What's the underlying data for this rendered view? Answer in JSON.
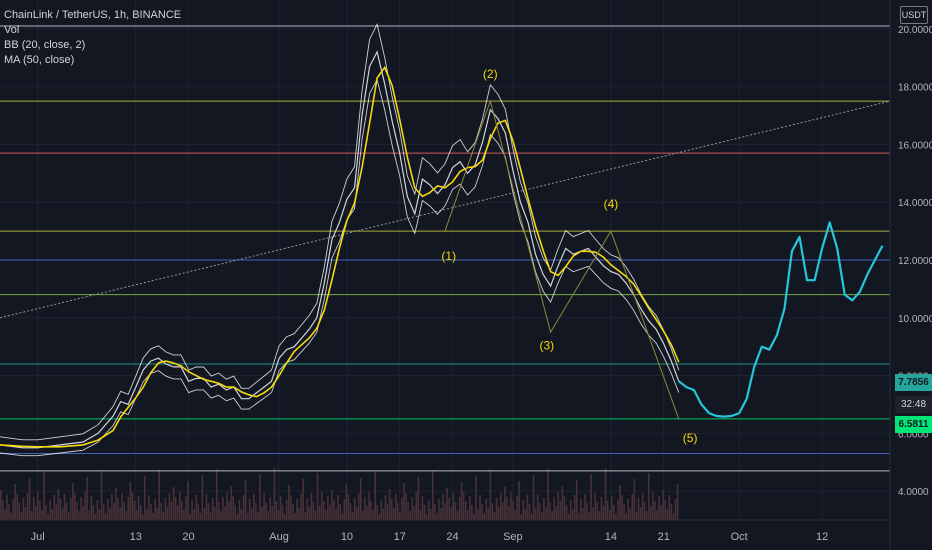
{
  "legend": {
    "symbol": "ChainLink / TetherUS, 1h, BINANCE",
    "vol": "Vol",
    "bb": "BB (20, close, 2)",
    "ma": "MA (50, close)"
  },
  "price_axis": {
    "currency": "USDT",
    "last_price": "7.7856",
    "countdown": "32:48",
    "line_price": "6.5811"
  },
  "colors": {
    "background": "#131722",
    "price_line": "#d1d4dc",
    "bollinger": "#ffffff",
    "moving_average": "#f5d90a",
    "projection": "#26c6da",
    "wave": "#f5d90a",
    "volume": "#5b3b3f"
  },
  "chart_data": {
    "type": "line",
    "title": "ChainLink / TetherUS, 1h, BINANCE",
    "ylim": [
      3,
      21
    ],
    "y_ticks": [
      4,
      6,
      8,
      10,
      12,
      14,
      16,
      18,
      20
    ],
    "y_tick_labels": [
      "4.0000",
      "6.0000",
      "8.0000",
      "10.0000",
      "12.0000",
      "14.0000",
      "16.0000",
      "18.0000",
      "20.0000"
    ],
    "x_tick_labels": [
      {
        "label": "Jul",
        "x": 0
      },
      {
        "label": "13",
        "x": 13
      },
      {
        "label": "20",
        "x": 20
      },
      {
        "label": "Aug",
        "x": 32
      },
      {
        "label": "10",
        "x": 41
      },
      {
        "label": "17",
        "x": 48
      },
      {
        "label": "24",
        "x": 55
      },
      {
        "label": "Sep",
        "x": 63
      },
      {
        "label": "14",
        "x": 76
      },
      {
        "label": "21",
        "x": 83
      },
      {
        "label": "Oct",
        "x": 93
      },
      {
        "label": "12",
        "x": 104
      }
    ],
    "xlim": [
      -5,
      113
    ],
    "price_series": {
      "name": "price",
      "x": [
        -5,
        -2,
        0,
        3,
        6,
        8,
        10,
        11,
        12,
        13,
        14,
        15,
        16,
        17,
        18,
        19,
        20,
        21,
        22,
        23,
        24,
        25,
        26,
        27,
        28,
        29,
        30,
        31,
        32,
        33,
        34,
        35,
        36,
        37,
        38,
        39,
        40,
        41,
        42,
        43,
        44,
        45,
        46,
        47,
        48,
        49,
        50,
        51,
        52,
        53,
        54,
        55,
        56,
        57,
        58,
        59,
        60,
        61,
        62,
        63,
        64,
        65,
        66,
        67,
        68,
        69,
        70,
        71,
        72,
        73,
        74,
        75,
        76,
        77,
        78,
        79,
        80,
        81,
        82,
        83,
        84,
        85
      ],
      "y": [
        5.6,
        5.5,
        5.5,
        5.6,
        5.7,
        6.0,
        6.6,
        7.1,
        7.0,
        7.6,
        8.2,
        8.5,
        8.6,
        8.4,
        8.3,
        8.3,
        7.8,
        7.9,
        7.9,
        7.6,
        7.7,
        7.5,
        7.6,
        7.2,
        7.2,
        7.4,
        7.6,
        7.8,
        8.6,
        8.9,
        9.0,
        9.3,
        9.6,
        10.0,
        11.2,
        12.7,
        13.3,
        14.1,
        14.5,
        17.0,
        18.7,
        19.2,
        18.1,
        16.8,
        15.7,
        14.2,
        13.6,
        14.8,
        14.6,
        14.3,
        14.6,
        15.2,
        15.4,
        15.0,
        15.3,
        16.1,
        17.2,
        16.9,
        16.4,
        15.1,
        14.0,
        13.3,
        12.2,
        11.5,
        11.1,
        11.8,
        12.4,
        12.2,
        12.3,
        12.4,
        12.1,
        11.8,
        11.6,
        11.5,
        11.2,
        10.8,
        10.3,
        9.9,
        9.6,
        9.1,
        8.5,
        7.8
      ]
    },
    "projection": {
      "name": "projection",
      "x": [
        85,
        86,
        87,
        88,
        89,
        90,
        91,
        92,
        93,
        94,
        95,
        96,
        97,
        98,
        99,
        100,
        101,
        102,
        103,
        104,
        105,
        106,
        107,
        108,
        109,
        110,
        111,
        112
      ],
      "y": [
        7.8,
        7.6,
        7.5,
        7.0,
        6.7,
        6.6,
        6.58,
        6.6,
        6.7,
        7.2,
        8.3,
        9.0,
        8.9,
        9.4,
        10.3,
        12.3,
        12.8,
        11.3,
        11.3,
        12.4,
        13.3,
        12.4,
        10.8,
        10.6,
        10.9,
        11.5,
        12.0,
        12.5
      ]
    },
    "wave_path": {
      "x": [
        54,
        60,
        68,
        76,
        85
      ],
      "y": [
        13.0,
        17.5,
        9.5,
        13.0,
        6.5
      ]
    },
    "wave_labels": [
      {
        "label": "(1)",
        "x": 54.5,
        "y": 12.0
      },
      {
        "label": "(2)",
        "x": 60,
        "y": 18.3
      },
      {
        "label": "(3)",
        "x": 67.5,
        "y": 8.9
      },
      {
        "label": "(4)",
        "x": 76,
        "y": 13.8
      },
      {
        "label": "(5)",
        "x": 86.5,
        "y": 5.7
      }
    ],
    "horizontal_levels": [
      {
        "y": 20.1,
        "color": "#d1d4dc"
      },
      {
        "y": 17.5,
        "color": "#c9c83b"
      },
      {
        "y": 15.7,
        "color": "#f06466"
      },
      {
        "y": 13.0,
        "color": "#c9c83b"
      },
      {
        "y": 12.0,
        "color": "#4a6fd1"
      },
      {
        "y": 10.8,
        "color": "#8bc34a"
      },
      {
        "y": 8.4,
        "color": "#26a69a"
      },
      {
        "y": 6.5,
        "color": "#00e676"
      },
      {
        "y": 5.3,
        "color": "#4a6fd1"
      },
      {
        "y": 4.7,
        "color": "#d1d4dc"
      }
    ],
    "trendline": {
      "x": [
        -5,
        113
      ],
      "y": [
        10.0,
        17.5
      ]
    },
    "grid": true
  }
}
